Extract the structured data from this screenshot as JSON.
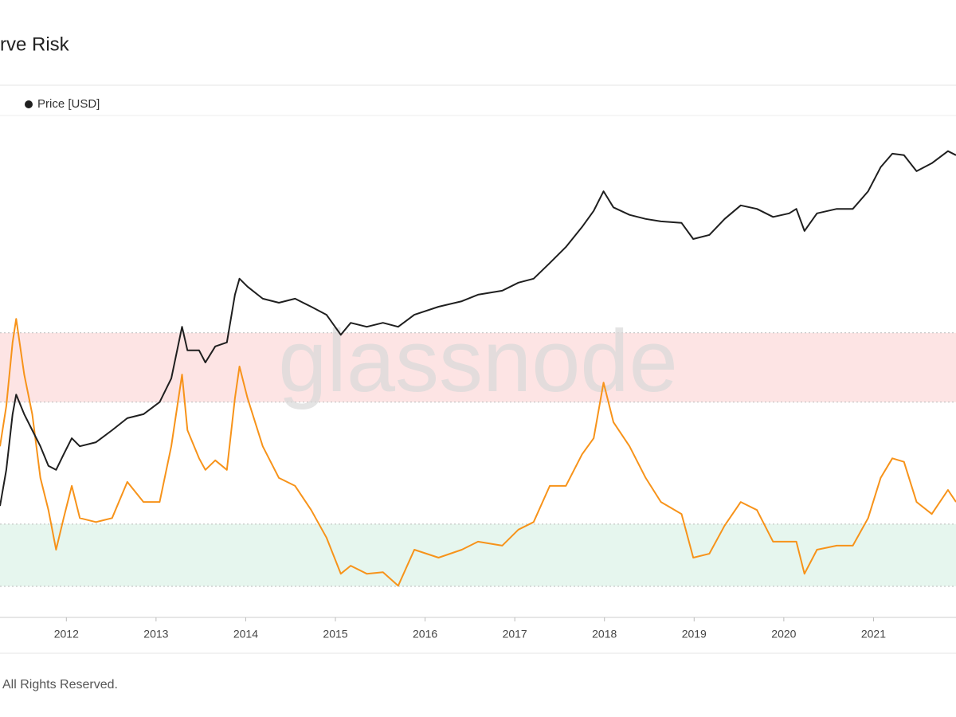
{
  "chart_data": {
    "type": "line",
    "title": "rve Risk",
    "watermark": "glassnode",
    "footer": "All Rights Reserved.",
    "xlim": [
      2011.26,
      2021.92
    ],
    "xticks": [
      2012,
      2013,
      2014,
      2015,
      2016,
      2017,
      2018,
      2019,
      2020,
      2021
    ],
    "ylim": [
      0,
      100
    ],
    "bands": [
      {
        "from": 42.9,
        "to": 56.7,
        "color": "#fde4e4"
      },
      {
        "from": 6.2,
        "to": 18.6,
        "color": "#e6f6ee"
      }
    ],
    "x": [
      2011.26,
      2011.33,
      2011.4,
      2011.44,
      2011.53,
      2011.62,
      2011.71,
      2011.8,
      2011.885,
      2011.97,
      2012.06,
      2012.15,
      2012.33,
      2012.51,
      2012.68,
      2012.86,
      2013.04,
      2013.17,
      2013.29,
      2013.35,
      2013.48,
      2013.55,
      2013.66,
      2013.79,
      2013.88,
      2013.93,
      2014.02,
      2014.19,
      2014.37,
      2014.55,
      2014.73,
      2014.9,
      2015.06,
      2015.17,
      2015.35,
      2015.53,
      2015.7,
      2015.88,
      2016.15,
      2016.41,
      2016.59,
      2016.86,
      2017.04,
      2017.21,
      2017.39,
      2017.57,
      2017.75,
      2017.88,
      2017.99,
      2018.1,
      2018.28,
      2018.46,
      2018.63,
      2018.86,
      2018.99,
      2019.17,
      2019.34,
      2019.52,
      2019.7,
      2019.88,
      2020.06,
      2020.14,
      2020.23,
      2020.37,
      2020.59,
      2020.77,
      2020.94,
      2021.08,
      2021.21,
      2021.34,
      2021.48,
      2021.65,
      2021.83,
      2021.92
    ],
    "series": [
      {
        "name": "Price [USD]",
        "color": "#1f1f1f",
        "values": [
          22.2,
          29.4,
          40.5,
          44.4,
          40.5,
          37.3,
          34.1,
          30.2,
          29.4,
          32.5,
          35.7,
          34.1,
          34.9,
          37.3,
          39.7,
          40.5,
          42.9,
          47.6,
          57.9,
          53.2,
          53.2,
          50.8,
          54.0,
          54.8,
          64.3,
          67.5,
          65.9,
          63.5,
          62.7,
          63.5,
          61.9,
          60.3,
          56.3,
          58.7,
          57.9,
          58.7,
          57.9,
          60.3,
          61.9,
          63.0,
          64.3,
          65.1,
          66.7,
          67.5,
          70.6,
          73.8,
          77.8,
          81.0,
          84.9,
          81.7,
          80.2,
          79.4,
          78.9,
          78.6,
          75.4,
          76.2,
          79.4,
          82.1,
          81.4,
          79.8,
          80.5,
          81.4,
          77.0,
          80.5,
          81.4,
          81.4,
          84.9,
          89.7,
          92.4,
          92.1,
          88.9,
          90.5,
          92.9,
          92.1
        ]
      },
      {
        "color": "#f7931a",
        "values": [
          34.1,
          42.1,
          54.8,
          59.5,
          48.4,
          40.5,
          27.8,
          21.4,
          13.5,
          19.8,
          26.2,
          19.8,
          19.0,
          19.8,
          27.0,
          23.0,
          23.0,
          34.1,
          48.4,
          37.3,
          31.7,
          29.4,
          31.3,
          29.4,
          43.7,
          50.0,
          43.7,
          34.1,
          27.8,
          26.2,
          21.4,
          15.9,
          8.7,
          10.3,
          8.7,
          9.0,
          6.3,
          13.5,
          11.9,
          13.5,
          15.1,
          14.3,
          17.5,
          19.0,
          26.2,
          26.2,
          32.5,
          35.7,
          46.8,
          38.9,
          34.1,
          27.8,
          23.0,
          20.6,
          11.9,
          12.7,
          18.3,
          23.0,
          21.4,
          15.1,
          15.1,
          15.1,
          8.7,
          13.5,
          14.3,
          14.3,
          19.8,
          27.8,
          31.7,
          31.0,
          23.0,
          20.6,
          25.4,
          23.0
        ]
      }
    ]
  }
}
